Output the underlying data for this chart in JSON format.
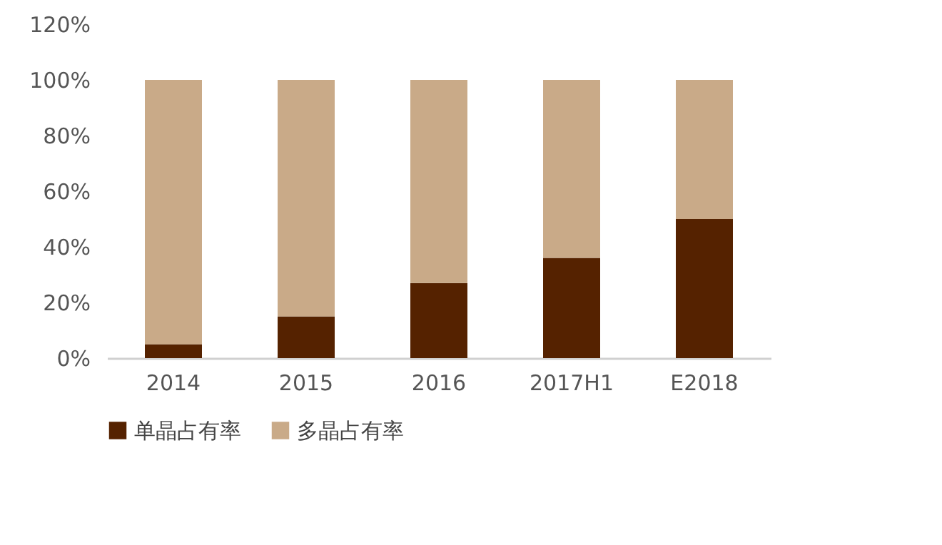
{
  "chart_data": {
    "type": "bar",
    "stacked": true,
    "categories": [
      "2014",
      "2015",
      "2016",
      "2017H1",
      "E2018"
    ],
    "series": [
      {
        "name": "单晶占有率",
        "color": "#552200",
        "values": [
          5,
          15,
          27,
          36,
          50
        ]
      },
      {
        "name": "多晶占有率",
        "color": "#c9aa88",
        "values": [
          95,
          85,
          73,
          64,
          50
        ]
      }
    ],
    "ylim": [
      0,
      120
    ],
    "yticks": [
      {
        "value": 0,
        "label": "0%"
      },
      {
        "value": 20,
        "label": "20%"
      },
      {
        "value": 40,
        "label": "40%"
      },
      {
        "value": 60,
        "label": "60%"
      },
      {
        "value": 80,
        "label": "80%"
      },
      {
        "value": 100,
        "label": "100%"
      },
      {
        "value": 120,
        "label": "120%"
      }
    ],
    "grid": false,
    "legend": "bottom"
  }
}
